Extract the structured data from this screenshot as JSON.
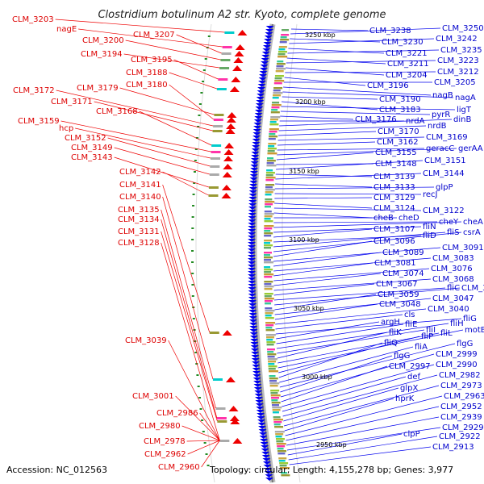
{
  "title": "Clostridium botulinum A2 str. Kyoto, complete genome",
  "footer": {
    "accession": "Accession: NC_012563",
    "topology": "Topology: circular; Length: 4,155,278 bp; Genes: 3,977"
  },
  "colors": {
    "left_labels": "#dd0000",
    "right_labels": "#0000cc",
    "plus_strand": "#ee0000",
    "minus_strand": "#0000ee",
    "backbone": "#999999",
    "tick": "#228b22"
  },
  "kbp_markers": [
    "3250 kbp",
    "3200 kbp",
    "3150 kbp",
    "3100 kbp",
    "3050 kbp",
    "3000 kbp",
    "2950 kbp"
  ],
  "left_labels": [
    "CLM_3203",
    "nagE",
    "CLM_3207",
    "CLM_3200",
    "CLM_3194",
    "CLM_3195",
    "CLM_3188",
    "CLM_3179",
    "CLM_3180",
    "CLM_3172",
    "CLM_3171",
    "CLM_3168",
    "CLM_3159",
    "hcp",
    "CLM_3152",
    "CLM_3149",
    "CLM_3143",
    "CLM_3142",
    "CLM_3141",
    "CLM_3140",
    "CLM_3135",
    "CLM_3134",
    "CLM_3131",
    "CLM_3128",
    "CLM_3039",
    "CLM_3001",
    "CLM_2986",
    "CLM_2980",
    "CLM_2978",
    "CLM_2962",
    "CLM_2960"
  ],
  "right_labels": [
    "CLM_3238",
    "CLM_3250",
    "CLM_3230",
    "CLM_3242",
    "CLM_3221",
    "CLM_3235",
    "CLM_3211",
    "CLM_3223",
    "CLM_3204",
    "CLM_3212",
    "CLM_3196",
    "CLM_3205",
    "nagB",
    "nagA",
    "CLM_3190",
    "CLM_3183",
    "ligT",
    "pyrR",
    "CLM_3176",
    "nrdA",
    "dinB",
    "nrdB",
    "CLM_3170",
    "CLM_3169",
    "CLM_3162",
    "geracC",
    "gerAA",
    "CLM_3155",
    "CLM_3148",
    "CLM_3151",
    "CLM_3139",
    "CLM_3144",
    "CLM_3133",
    "glpP",
    "recJ",
    "CLM_3129",
    "CLM_3124",
    "CLM_3122",
    "cheB",
    "cheD",
    "cheY",
    "cheA",
    "fliN",
    "CLM_3107",
    "fliD",
    "fliS",
    "csrA",
    "CLM_3096",
    "CLM_3091",
    "CLM_3089",
    "CLM_3083",
    "CLM_3081",
    "CLM_3076",
    "CLM_3074",
    "CLM_3068",
    "CLM_3067",
    "fliC",
    "CLM_3057",
    "CLM_3059",
    "CLM_3047",
    "CLM_3048",
    "CLM_3040",
    "cls",
    "fliG",
    "argH",
    "fliE",
    "fliH",
    "fliI",
    "fliK",
    "fliL",
    "motB",
    "fliP",
    "fliQ",
    "fliA",
    "flgG",
    "flgG",
    "CLM_2999",
    "CLM_2997",
    "CLM_2990",
    "def",
    "CLM_2982",
    "glpX",
    "CLM_2973",
    "hprK",
    "CLM_2963",
    "CLM_2952",
    "CLM_2939",
    "CLM_2929",
    "clpP",
    "CLM_2922",
    "CLM_2913"
  ]
}
